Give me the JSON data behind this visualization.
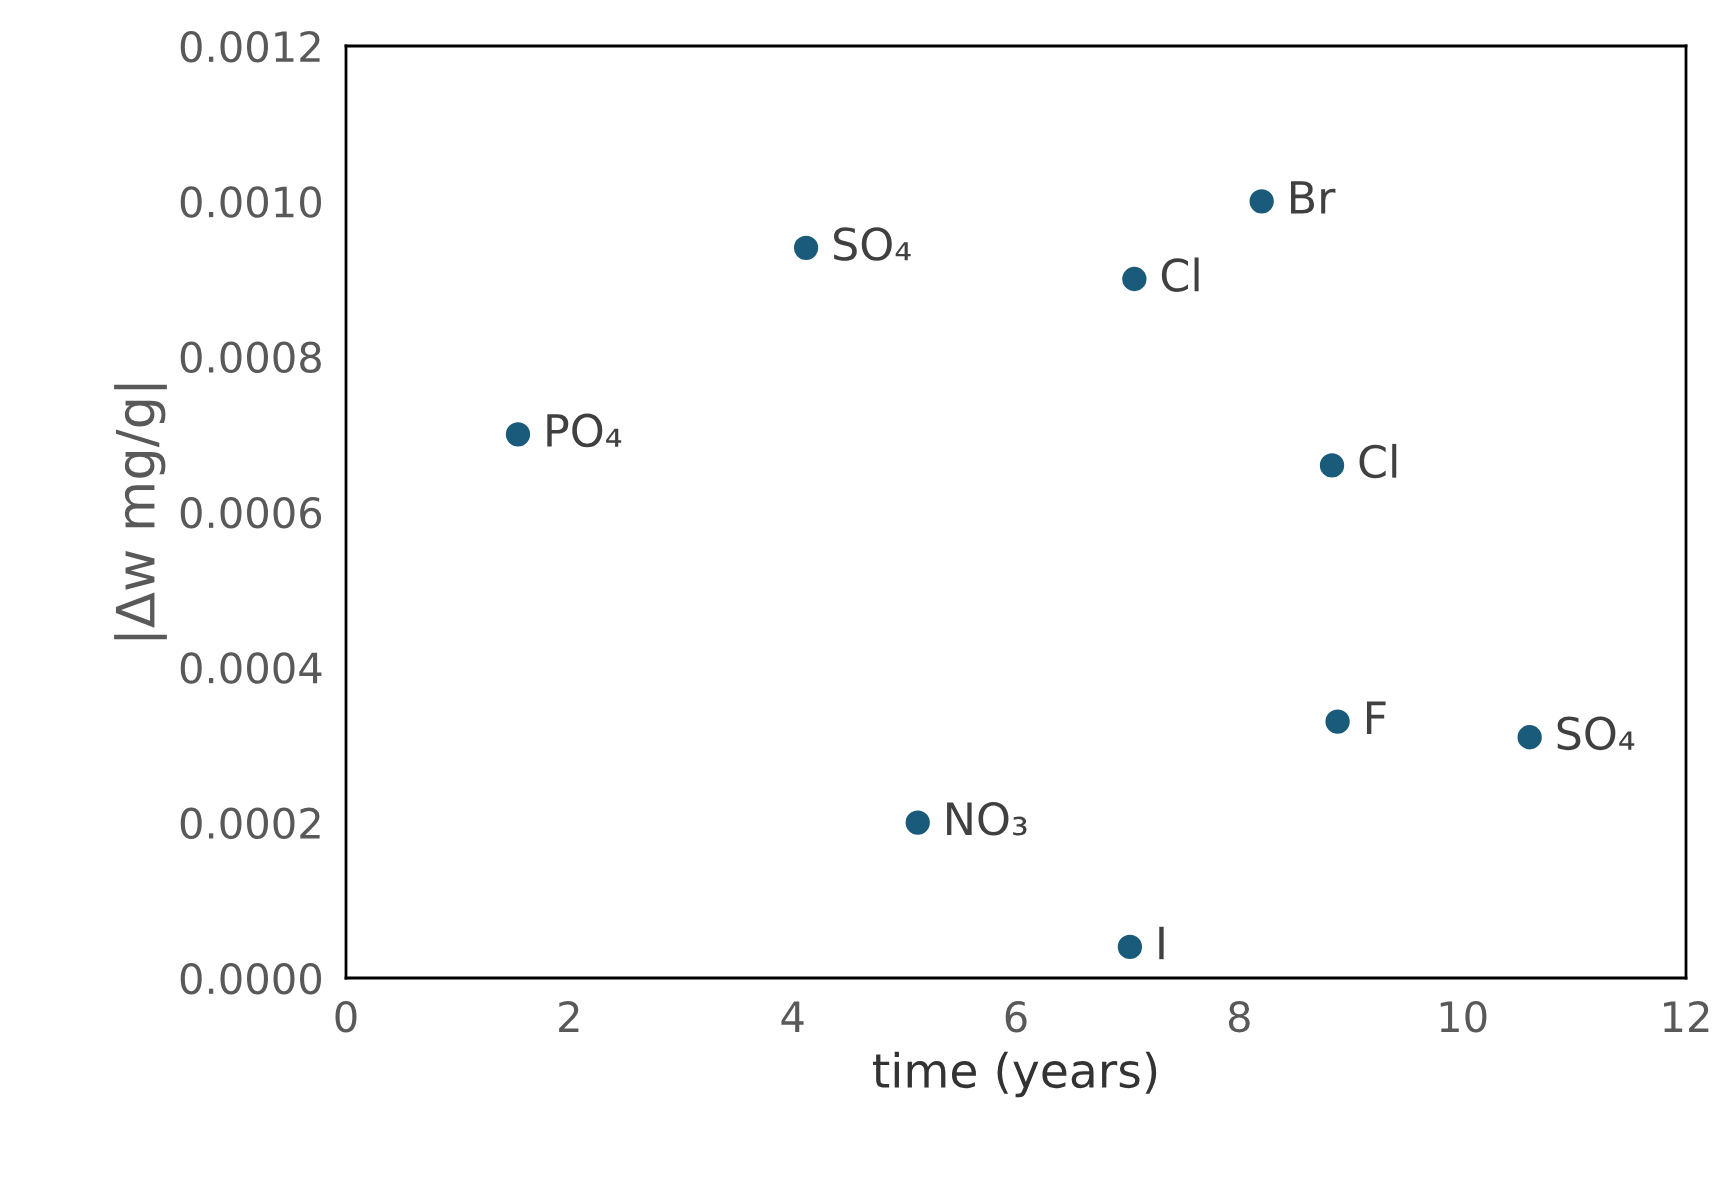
{
  "chart_data": {
    "type": "scatter",
    "xlabel": "time (years)",
    "ylabel": "|Δw mg/g|",
    "x": [
      1.54,
      4.12,
      5.12,
      7.02,
      7.06,
      8.2,
      8.83,
      8.88,
      10.6
    ],
    "values": [
      0.0007,
      0.00094,
      0.0002,
      4e-05,
      0.0009,
      0.001,
      0.00066,
      0.00033,
      0.00031
    ],
    "color": "#1a5a7a",
    "marker": "circle",
    "grid": false,
    "legend": false,
    "xlim": [
      0,
      12
    ],
    "xticks": [
      0,
      2,
      4,
      6,
      8,
      10,
      12
    ],
    "ylim": [
      0,
      0.0012
    ],
    "yticks": [
      {
        "value": 0,
        "label": "0.0000"
      },
      {
        "value": 0.0002,
        "label": "0.0002"
      },
      {
        "value": 0.0004,
        "label": "0.0004"
      },
      {
        "value": 0.0006,
        "label": "0.0006"
      },
      {
        "value": 0.0008,
        "label": "0.0008"
      },
      {
        "value": 0.001,
        "label": "0.0010"
      },
      {
        "value": 0.0012,
        "label": "0.0012"
      }
    ],
    "annotations": [
      {
        "text": "PO₄",
        "x": 1.54,
        "y": 0.0007
      },
      {
        "text": "SO₄",
        "x": 4.12,
        "y": 0.00094
      },
      {
        "text": "NO₃",
        "x": 5.12,
        "y": 0.0002
      },
      {
        "text": "I",
        "x": 7.02,
        "y": 4e-05
      },
      {
        "text": "Cl",
        "x": 7.06,
        "y": 0.0009
      },
      {
        "text": "Br",
        "x": 8.2,
        "y": 0.001
      },
      {
        "text": "Cl",
        "x": 8.83,
        "y": 0.00066
      },
      {
        "text": "F",
        "x": 8.88,
        "y": 0.00033
      },
      {
        "text": "SO₄",
        "x": 10.6,
        "y": 0.00031
      }
    ]
  }
}
